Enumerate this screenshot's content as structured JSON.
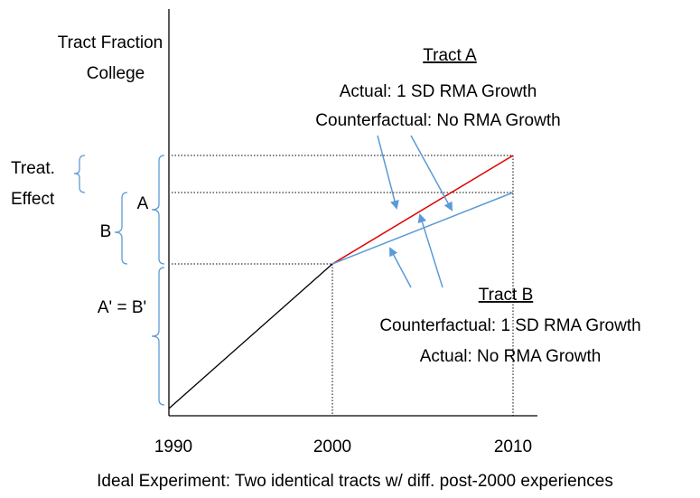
{
  "axis": {
    "y_label": [
      "Tract Fraction",
      "College"
    ],
    "x_ticks": [
      "1990",
      "2000",
      "2010"
    ]
  },
  "tract_a": {
    "title": "Tract A",
    "lines": [
      "Actual: 1 SD RMA Growth",
      "Counterfactual: No RMA Growth"
    ]
  },
  "tract_b": {
    "title": "Tract B",
    "lines": [
      "Counterfactual: 1 SD RMA Growth",
      "Actual: No RMA Growth"
    ]
  },
  "braces": {
    "treat": [
      "Treat.",
      "Effect"
    ],
    "a": "A",
    "b": "B",
    "base": "A' = B'"
  },
  "caption": "Ideal Experiment: Two identical tracts w/ diff. post-2000 experiences"
}
